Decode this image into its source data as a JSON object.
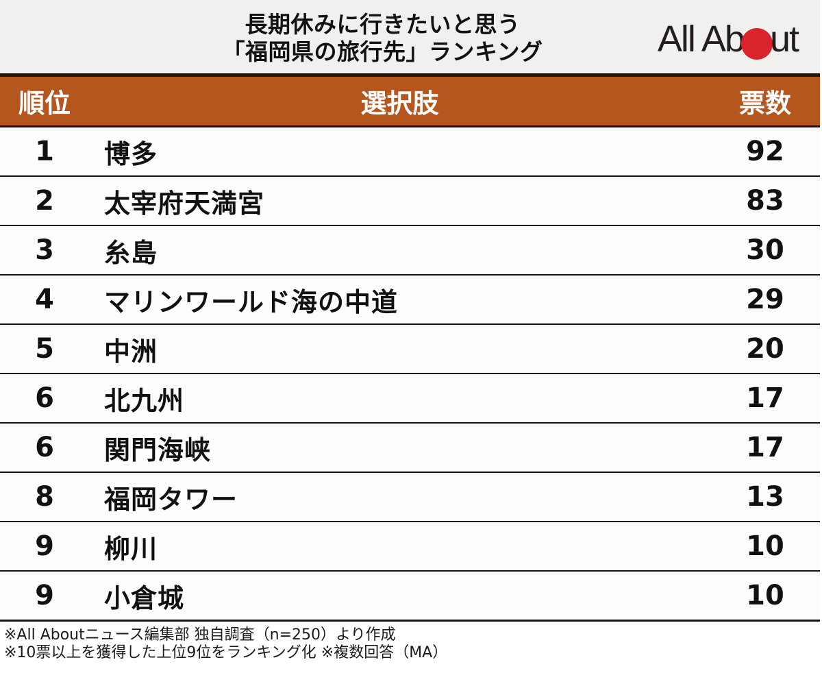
{
  "header": {
    "title_line1": "長期休みに行きたいと思う",
    "title_line2": "「福岡県の旅行先」ランキング",
    "logo": {
      "name": "All About",
      "text_before_dot": "All Ab",
      "text_after_dot": "ut",
      "dot_color": "#d9232d"
    }
  },
  "table": {
    "columns": {
      "rank": "順位",
      "choice": "選択肢",
      "votes": "票数"
    },
    "rows": [
      {
        "rank": "1",
        "name": "博多",
        "votes": "92"
      },
      {
        "rank": "2",
        "name": "太宰府天満宮",
        "votes": "83"
      },
      {
        "rank": "3",
        "name": "糸島",
        "votes": "30"
      },
      {
        "rank": "4",
        "name": "マリンワールド海の中道",
        "votes": "29"
      },
      {
        "rank": "5",
        "name": "中洲",
        "votes": "20"
      },
      {
        "rank": "6",
        "name": "北九州",
        "votes": "17"
      },
      {
        "rank": "6",
        "name": "関門海峡",
        "votes": "17"
      },
      {
        "rank": "8",
        "name": "福岡タワー",
        "votes": "13"
      },
      {
        "rank": "9",
        "name": "柳川",
        "votes": "10"
      },
      {
        "rank": "9",
        "name": "小倉城",
        "votes": "10"
      }
    ]
  },
  "footer": {
    "line1": "※All Aboutニュース編集部 独自調査（n=250）より作成",
    "line2": "※10票以上を獲得した上位9位をランキング化 ※複数回答（MA）"
  },
  "colors": {
    "title_band_bg": "#f0f0ef",
    "table_header_bg": "#b4561e",
    "header_text": "#ffffff",
    "border_dark": "#201307",
    "logo_red": "#d9232d"
  },
  "chart_data": {
    "type": "table",
    "title": "長期休みに行きたいと思う「福岡県の旅行先」ランキング",
    "columns": [
      "順位",
      "選択肢",
      "票数"
    ],
    "categories": [
      "博多",
      "太宰府天満宮",
      "糸島",
      "マリンワールド海の中道",
      "中洲",
      "北九州",
      "関門海峡",
      "福岡タワー",
      "柳川",
      "小倉城"
    ],
    "ranks": [
      1,
      2,
      3,
      4,
      5,
      6,
      6,
      8,
      9,
      9
    ],
    "values": [
      92,
      83,
      30,
      29,
      20,
      17,
      17,
      13,
      10,
      10
    ],
    "notes": [
      "※All Aboutニュース編集部 独自調査（n=250）より作成",
      "※10票以上を獲得した上位9位をランキング化 ※複数回答（MA）"
    ],
    "sample_size": "n=250"
  }
}
